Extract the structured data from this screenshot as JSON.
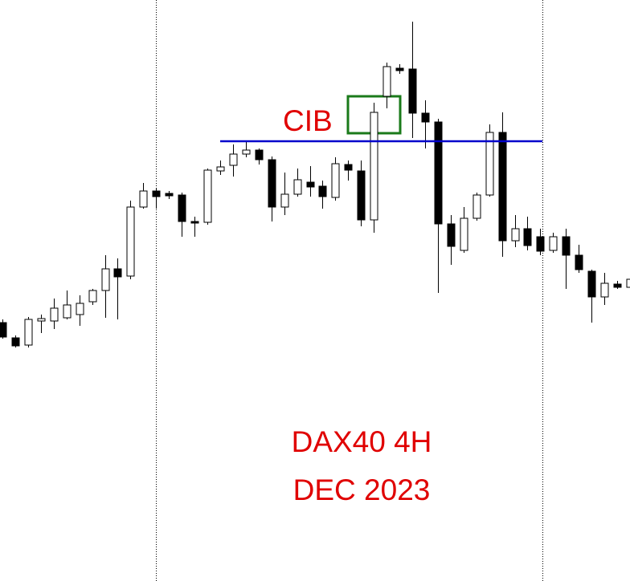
{
  "chart_data": {
    "type": "candlestick",
    "annotations": {
      "level_label": "CIB",
      "title": "DAX40 4H",
      "subtitle": "DEC 2023"
    },
    "open": [
      322,
      303,
      294,
      324,
      324,
      328,
      332,
      348,
      362,
      389,
      380,
      466,
      486,
      483,
      481,
      448,
      447,
      511,
      518,
      532,
      537,
      525,
      466,
      482,
      497,
      492,
      478,
      519,
      511,
      450,
      604,
      639,
      638,
      583,
      572,
      445,
      412,
      452,
      481,
      559,
      424,
      439,
      429,
      412,
      429,
      406,
      386,
      354,
      370,
      366
    ],
    "high": [
      326,
      306,
      329,
      332,
      352,
      362,
      356,
      364,
      406,
      402,
      474,
      496,
      489,
      486,
      484,
      454,
      514,
      524,
      544,
      548,
      539,
      529,
      509,
      514,
      517,
      499,
      528,
      524,
      524,
      596,
      646,
      644,
      697,
      599,
      576,
      456,
      466,
      484,
      569,
      584,
      456,
      454,
      439,
      434,
      439,
      419,
      388,
      384,
      374,
      379
    ],
    "low": [
      302,
      291,
      291,
      309,
      314,
      326,
      318,
      344,
      328,
      326,
      376,
      464,
      464,
      476,
      429,
      429,
      444,
      506,
      504,
      528,
      519,
      448,
      456,
      479,
      479,
      464,
      474,
      499,
      442,
      434,
      589,
      632,
      552,
      539,
      359,
      394,
      409,
      449,
      479,
      404,
      416,
      412,
      406,
      409,
      364,
      384,
      322,
      344,
      364,
      362
    ],
    "close": [
      304,
      293,
      326,
      327,
      340,
      344,
      346,
      362,
      389,
      379,
      466,
      486,
      479,
      480,
      448,
      446,
      512,
      516,
      532,
      537,
      525,
      466,
      482,
      500,
      491,
      479,
      520,
      512,
      450,
      584,
      641,
      636,
      583,
      572,
      445,
      417,
      452,
      481,
      559,
      424,
      439,
      418,
      411,
      429,
      406,
      388,
      354,
      371,
      366,
      376
    ],
    "up_color": "#ffffff",
    "down_color": "#000000",
    "level": 548,
    "level_color": "#0000cc",
    "ylim": [
      0,
      724
    ]
  }
}
